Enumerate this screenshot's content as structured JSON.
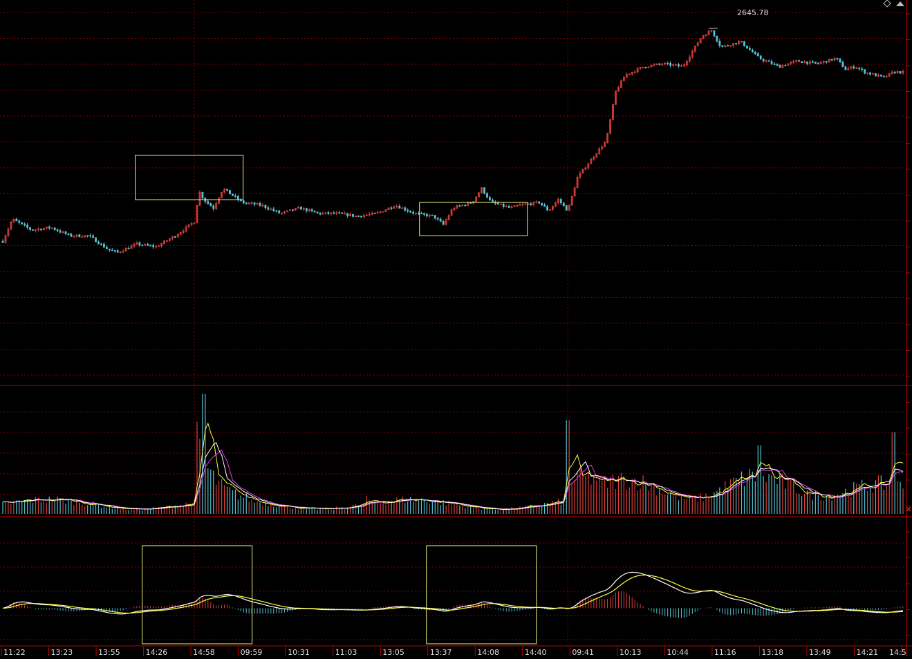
{
  "colors": {
    "background": "#000000",
    "grid": "#8b0000",
    "axis": "#c00000",
    "up": "#e0403c",
    "down": "#56c2d6",
    "white_line": "#ffffff",
    "yellow_line": "#ffff40",
    "magenta_line": "#e040e0",
    "highlight_box": "#f0f080",
    "text": "#dddddd"
  },
  "chart_data": [
    {
      "type": "candlestick",
      "panel": "price",
      "annotation": {
        "label": "2645.78",
        "value": 2645.78
      },
      "ylim": [
        2520,
        2655
      ],
      "grid": true,
      "highlight_boxes": [
        {
          "from": "14:26",
          "to": "09:59",
          "low": 2585,
          "high": 2601
        },
        {
          "from": "13:37",
          "to": "14:40",
          "low": 2572,
          "high": 2584
        }
      ],
      "series_anchors": [
        {
          "t": 0,
          "v": 2570
        },
        {
          "t": 1,
          "v": 2578
        },
        {
          "t": 3,
          "v": 2574
        },
        {
          "t": 5,
          "v": 2575
        },
        {
          "t": 7,
          "v": 2572
        },
        {
          "t": 9,
          "v": 2572
        },
        {
          "t": 11,
          "v": 2567
        },
        {
          "t": 12,
          "v": 2566
        },
        {
          "t": 14,
          "v": 2569
        },
        {
          "t": 16,
          "v": 2568
        },
        {
          "t": 18,
          "v": 2572
        },
        {
          "t": 20,
          "v": 2577
        },
        {
          "t": 20.5,
          "v": 2588
        },
        {
          "t": 21,
          "v": 2585
        },
        {
          "t": 22,
          "v": 2582
        },
        {
          "t": 23,
          "v": 2589
        },
        {
          "t": 25,
          "v": 2584
        },
        {
          "t": 27,
          "v": 2583
        },
        {
          "t": 29,
          "v": 2580
        },
        {
          "t": 31,
          "v": 2582
        },
        {
          "t": 33,
          "v": 2580
        },
        {
          "t": 35,
          "v": 2580
        },
        {
          "t": 37,
          "v": 2579
        },
        {
          "t": 39,
          "v": 2580
        },
        {
          "t": 41,
          "v": 2583
        },
        {
          "t": 43,
          "v": 2580
        },
        {
          "t": 45,
          "v": 2579
        },
        {
          "t": 46,
          "v": 2576
        },
        {
          "t": 47,
          "v": 2582
        },
        {
          "t": 49,
          "v": 2584
        },
        {
          "t": 50,
          "v": 2589
        },
        {
          "t": 51,
          "v": 2584
        },
        {
          "t": 53,
          "v": 2582
        },
        {
          "t": 54,
          "v": 2583
        },
        {
          "t": 56,
          "v": 2584
        },
        {
          "t": 57,
          "v": 2581
        },
        {
          "t": 58,
          "v": 2585
        },
        {
          "t": 59,
          "v": 2581
        },
        {
          "t": 60,
          "v": 2593
        },
        {
          "t": 62,
          "v": 2602
        },
        {
          "t": 63,
          "v": 2606
        },
        {
          "t": 64,
          "v": 2624
        },
        {
          "t": 65,
          "v": 2630
        },
        {
          "t": 67,
          "v": 2633
        },
        {
          "t": 69,
          "v": 2634
        },
        {
          "t": 71,
          "v": 2633
        },
        {
          "t": 73,
          "v": 2644
        },
        {
          "t": 74,
          "v": 2646
        },
        {
          "t": 75,
          "v": 2640
        },
        {
          "t": 77,
          "v": 2642
        },
        {
          "t": 79,
          "v": 2636
        },
        {
          "t": 81,
          "v": 2633
        },
        {
          "t": 83,
          "v": 2635
        },
        {
          "t": 85,
          "v": 2634
        },
        {
          "t": 87,
          "v": 2636
        },
        {
          "t": 88,
          "v": 2632
        },
        {
          "t": 89,
          "v": 2633
        },
        {
          "t": 90,
          "v": 2631
        },
        {
          "t": 92,
          "v": 2629
        },
        {
          "t": 93,
          "v": 2631
        }
      ]
    },
    {
      "type": "bar",
      "panel": "volume",
      "ylim": [
        0,
        100
      ],
      "grid": true,
      "spikes": [
        {
          "t": 21,
          "v": 100
        },
        {
          "t": 38,
          "v": 15
        },
        {
          "t": 59,
          "v": 78
        },
        {
          "t": 79,
          "v": 57
        },
        {
          "t": 93,
          "v": 68
        }
      ]
    },
    {
      "type": "macd",
      "panel": "oscillator",
      "ylim": [
        -25,
        60
      ],
      "grid": true,
      "highlight_boxes": [
        {
          "from": "14:26",
          "to": "09:59"
        },
        {
          "from": "13:37",
          "to": "14:40"
        }
      ]
    }
  ],
  "x_axis": {
    "ticks": [
      "11:22",
      "13:23",
      "13:55",
      "14:26",
      "14:58",
      "09:59",
      "10:31",
      "11:03",
      "13:05",
      "13:37",
      "14:08",
      "14:40",
      "09:41",
      "10:13",
      "10:44",
      "11:16",
      "13:18",
      "13:49",
      "14:21",
      "14:5"
    ]
  },
  "corner_icons": [
    "diamond-icon",
    "arrow-up-icon",
    "x-close-icon"
  ]
}
